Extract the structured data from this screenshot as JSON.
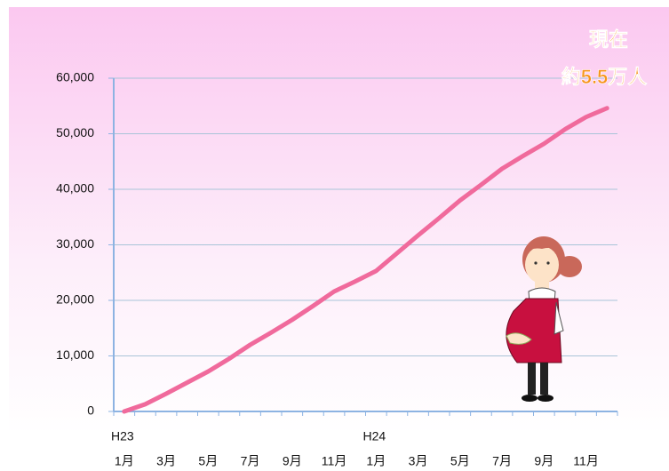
{
  "chart_data": {
    "type": "line",
    "categories": [
      "1月",
      null,
      "3月",
      null,
      "5月",
      null,
      "7月",
      null,
      "9月",
      null,
      "11月",
      null,
      "1月",
      null,
      "3月",
      null,
      "5月",
      null,
      "7月",
      null,
      "9月",
      null,
      "11月",
      null
    ],
    "category_groups": [
      "H23",
      null,
      null,
      null,
      null,
      null,
      null,
      null,
      null,
      null,
      null,
      null,
      "H24",
      null,
      null,
      null,
      null,
      null,
      null,
      null,
      null,
      null,
      null,
      null
    ],
    "series": [
      {
        "color": "#f06a9c",
        "values": [
          0,
          1300,
          3200,
          5200,
          7200,
          9500,
          12000,
          14200,
          16500,
          19000,
          21600,
          23400,
          25300,
          28500,
          31700,
          34800,
          38000,
          40800,
          43700,
          46000,
          48200,
          50800,
          53000,
          54600
        ]
      }
    ],
    "ylim": [
      0,
      60000
    ],
    "yticks": [
      0,
      {
        "value": 10000,
        "label": "10,000"
      },
      {
        "value": 20000,
        "label": "20,000"
      },
      {
        "value": 30000,
        "label": "30,000"
      },
      {
        "value": 40000,
        "label": "40,000"
      },
      {
        "value": 50000,
        "label": "50,000"
      },
      {
        "value": 60000,
        "label": "60,000"
      }
    ],
    "grid": true,
    "annotation": [
      "現在",
      "約5.5万人"
    ]
  }
}
